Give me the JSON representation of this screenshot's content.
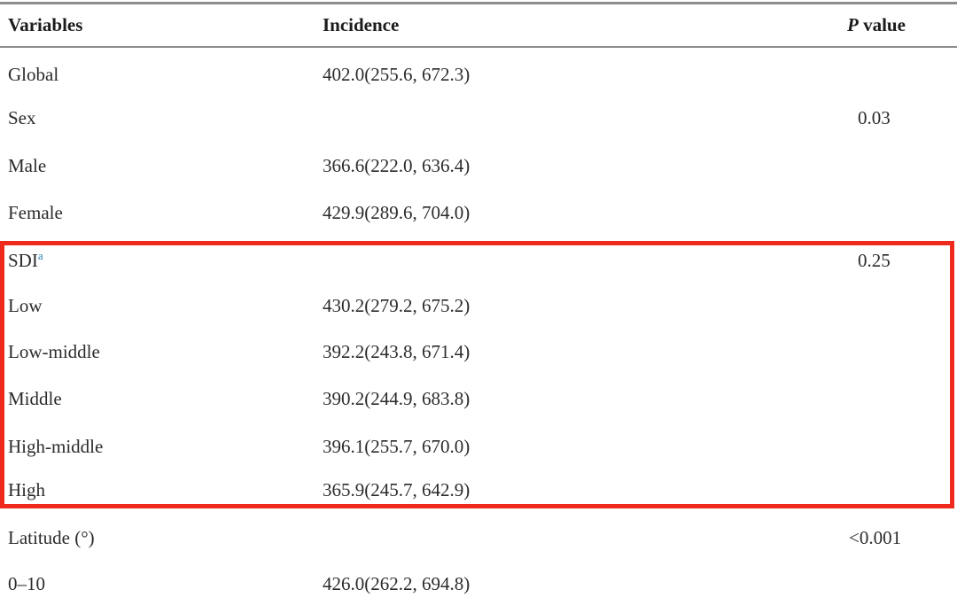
{
  "table": {
    "headers": {
      "variables": "Variables",
      "incidence": "Incidence",
      "p_italic": "P",
      "p_rest": " value"
    },
    "rows": [
      {
        "variable": "Global",
        "incidence": "402.0(255.6, 672.3)",
        "p": ""
      },
      {
        "variable": "Sex",
        "incidence": "",
        "p": "0.03"
      },
      {
        "variable": "Male",
        "incidence": "366.6(222.0, 636.4)",
        "p": ""
      },
      {
        "variable": "Female",
        "incidence": "429.9(289.6, 704.0)",
        "p": ""
      },
      {
        "variable": "SDI",
        "superscript": "a",
        "incidence": "",
        "p": "0.25"
      },
      {
        "variable": "Low",
        "incidence": "430.2(279.2, 675.2)",
        "p": ""
      },
      {
        "variable": "Low-middle",
        "incidence": "392.2(243.8, 671.4)",
        "p": ""
      },
      {
        "variable": "Middle",
        "incidence": "390.2(244.9, 683.8)",
        "p": ""
      },
      {
        "variable": "High-middle",
        "incidence": "396.1(255.7, 670.0)",
        "p": ""
      },
      {
        "variable": "High",
        "incidence": "365.9(245.7, 642.9)",
        "p": ""
      },
      {
        "variable": "Latitude (°)",
        "incidence": "",
        "p": "<0.001"
      },
      {
        "variable": "0–10",
        "incidence": "426.0(262.2, 694.8)",
        "p": ""
      }
    ],
    "highlight": {
      "type": "red-box-annotation",
      "color": "#ee2a1c",
      "enclosed_rows": [
        "SDI",
        "Low",
        "Low-middle",
        "Middle",
        "High-middle",
        "High"
      ]
    },
    "rule_color": "#8d8d8d"
  }
}
